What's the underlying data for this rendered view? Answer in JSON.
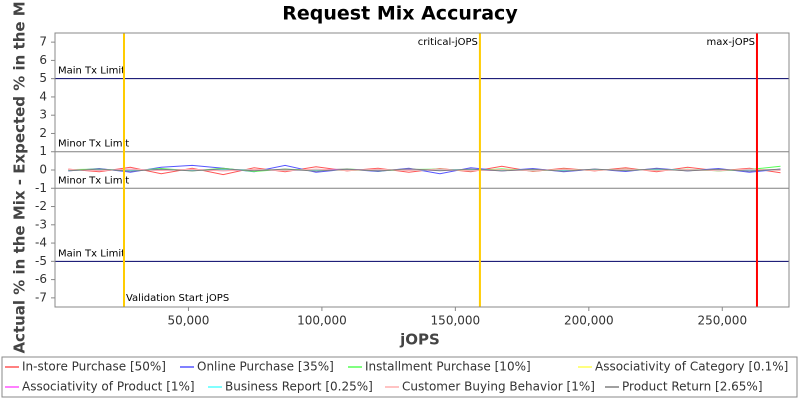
{
  "chart_data": {
    "type": "line",
    "title": "Request Mix Accuracy",
    "xlabel": "jOPS",
    "ylabel": "Actual % in the Mix - Expected % in the Mix",
    "xlim": [
      0,
      275000
    ],
    "ylim": [
      -7.5,
      7.5
    ],
    "xticks": [
      {
        "value": 50000,
        "label": "50,000"
      },
      {
        "value": 100000,
        "label": "100,000"
      },
      {
        "value": 150000,
        "label": "150,000"
      },
      {
        "value": 200000,
        "label": "200,000"
      },
      {
        "value": 250000,
        "label": "250,000"
      }
    ],
    "yticks": [
      -7,
      -6,
      -5,
      -4,
      -3,
      -2,
      -1,
      0,
      1,
      2,
      3,
      4,
      5,
      6,
      7
    ],
    "hlines": [
      {
        "value": 5,
        "label": "Main Tx Limit",
        "color": "#000066"
      },
      {
        "value": 1,
        "label": "Minor Tx Limit",
        "color": "#808080"
      },
      {
        "value": -1,
        "label": "Minor Tx Limit",
        "color": "#808080"
      },
      {
        "value": -5,
        "label": "Main Tx Limit",
        "color": "#000066"
      }
    ],
    "vlines": [
      {
        "value": 25850,
        "label": "Validation Start jOPS",
        "color": "#ffcc00"
      },
      {
        "value": 159200,
        "label": "critical-jOPS",
        "color": "#ffcc00"
      },
      {
        "value": 263000,
        "label": "max-jOPS",
        "color": "#ff0000"
      }
    ],
    "x": [
      5000,
      16600,
      28200,
      39800,
      51400,
      63000,
      74600,
      86200,
      97800,
      109400,
      121000,
      132600,
      144200,
      155800,
      167400,
      179000,
      190600,
      202200,
      213800,
      225400,
      237000,
      248600,
      260200,
      271800
    ],
    "series": [
      {
        "name": "In-store Purchase [50%]",
        "color": "#ff5555",
        "values": [
          0.05,
          -0.1,
          0.15,
          -0.2,
          0.1,
          -0.25,
          0.12,
          -0.1,
          0.18,
          -0.05,
          0.1,
          -0.12,
          0.08,
          -0.1,
          0.2,
          -0.08,
          0.1,
          -0.05,
          0.12,
          -0.1,
          0.15,
          -0.05,
          0.1,
          -0.15
        ]
      },
      {
        "name": "Online Purchase [35%]",
        "color": "#5555ff",
        "values": [
          -0.05,
          0.08,
          -0.12,
          0.15,
          0.25,
          0.1,
          -0.1,
          0.25,
          -0.12,
          0.05,
          -0.08,
          0.1,
          -0.2,
          0.12,
          -0.05,
          0.08,
          -0.1,
          0.05,
          -0.08,
          0.1,
          -0.05,
          0.08,
          -0.12,
          0.05
        ]
      },
      {
        "name": "Installment Purchase [10%]",
        "color": "#55ff55",
        "values": [
          0.02,
          0.05,
          -0.05,
          0.08,
          -0.05,
          0.1,
          -0.08,
          0.05,
          -0.02,
          0.06,
          -0.05,
          0.03,
          0.05,
          -0.04,
          0.06,
          -0.05,
          0.04,
          -0.02,
          0.05,
          -0.03,
          0.04,
          -0.05,
          0.03,
          0.2
        ]
      },
      {
        "name": "Associativity of Category [0.1%]",
        "color": "#ffff55",
        "values": [
          0.0,
          0.01,
          -0.01,
          0.01,
          0.0,
          -0.01,
          0.01,
          0.0,
          0.01,
          -0.01,
          0.0,
          0.01,
          0.0,
          -0.01,
          0.01,
          0.0,
          -0.01,
          0.01,
          0.0,
          0.01,
          -0.01,
          0.0,
          0.01,
          0.0
        ]
      },
      {
        "name": "Associativity of Product [1%]",
        "color": "#ff55ff",
        "values": [
          0.02,
          -0.03,
          0.04,
          -0.02,
          0.03,
          -0.04,
          0.02,
          -0.03,
          0.02,
          0.04,
          -0.02,
          0.03,
          -0.03,
          0.02,
          -0.04,
          0.03,
          -0.02,
          0.03,
          -0.02,
          0.04,
          -0.03,
          0.02,
          -0.02,
          0.03
        ]
      },
      {
        "name": "Business Report [0.25%]",
        "color": "#55ffff",
        "values": [
          -0.02,
          0.02,
          -0.01,
          0.03,
          -0.02,
          0.01,
          0.02,
          -0.02,
          0.01,
          -0.01,
          0.02,
          -0.02,
          0.01,
          0.02,
          -0.01,
          0.01,
          -0.02,
          0.02,
          -0.01,
          0.01,
          0.02,
          -0.01,
          0.01,
          -0.02
        ]
      },
      {
        "name": "Customer Buying Behavior [1%]",
        "color": "#ffafaf",
        "values": [
          0.03,
          -0.04,
          0.05,
          -0.03,
          0.04,
          -0.05,
          0.03,
          -0.04,
          0.05,
          -0.03,
          0.04,
          -0.03,
          0.05,
          -0.04,
          0.03,
          -0.05,
          0.04,
          -0.03,
          0.05,
          -0.04,
          0.03,
          -0.04,
          0.05,
          -0.03
        ]
      },
      {
        "name": "Product Return [2.65%]",
        "color": "#808080",
        "values": [
          -0.04,
          0.05,
          -0.06,
          0.04,
          -0.05,
          0.06,
          -0.04,
          0.05,
          -0.06,
          0.04,
          -0.05,
          0.06,
          -0.04,
          0.05,
          -0.05,
          0.04,
          -0.06,
          0.05,
          -0.04,
          0.06,
          -0.05,
          0.04,
          -0.06,
          0.05
        ]
      }
    ]
  }
}
